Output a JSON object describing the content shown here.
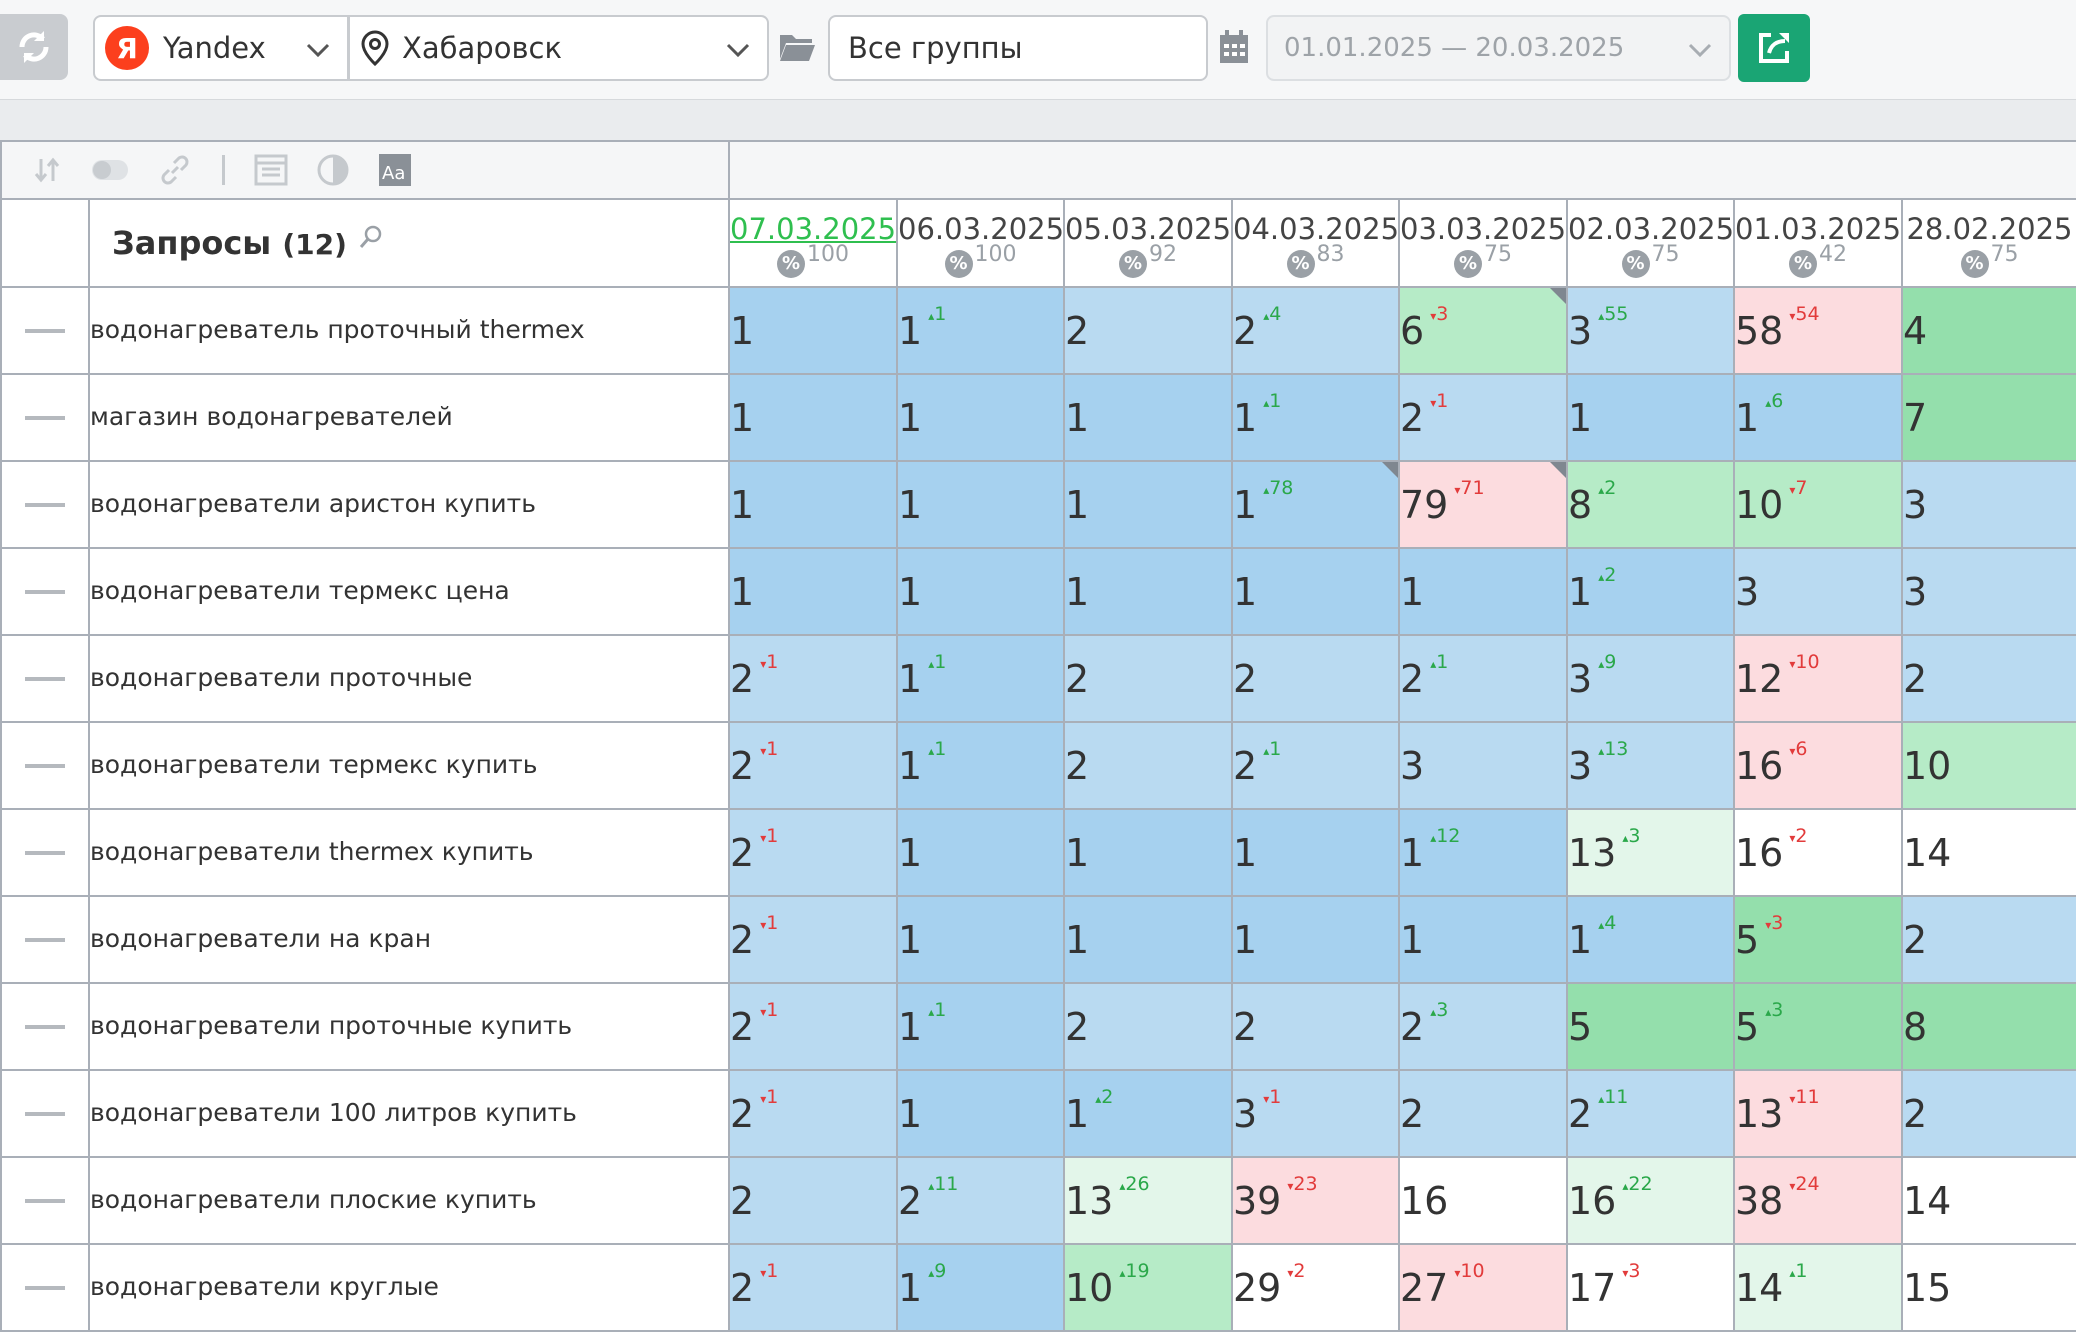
{
  "toolbar": {
    "refresh_icon": "refresh-icon",
    "engine_logo": "Я",
    "engine": "Yandex",
    "city": "Хабаровск",
    "group": "Все группы",
    "date_range": "01.01.2025 — 20.03.2025",
    "accent_color": "#1aa574"
  },
  "table": {
    "queries_title": "Запросы",
    "queries_count": "(12)",
    "dates": [
      {
        "date": "07.03.2025",
        "pct": "100",
        "current": true
      },
      {
        "date": "06.03.2025",
        "pct": "100"
      },
      {
        "date": "05.03.2025",
        "pct": "92"
      },
      {
        "date": "04.03.2025",
        "pct": "83"
      },
      {
        "date": "03.03.2025",
        "pct": "75"
      },
      {
        "date": "02.03.2025",
        "pct": "75"
      },
      {
        "date": "01.03.2025",
        "pct": "42"
      },
      {
        "date": "28.02.2025",
        "pct": "75"
      }
    ],
    "rows": [
      {
        "query": "водонагреватель проточный thermex",
        "cells": [
          {
            "v": "1",
            "bg": "b1"
          },
          {
            "v": "1",
            "d": "1",
            "dir": "up",
            "bg": "b1"
          },
          {
            "v": "2",
            "bg": "b2"
          },
          {
            "v": "2",
            "d": "4",
            "dir": "up",
            "bg": "b2"
          },
          {
            "v": "6",
            "d": "3",
            "dir": "dn",
            "bg": "g2",
            "corner": true
          },
          {
            "v": "3",
            "d": "55",
            "dir": "up",
            "bg": "b2"
          },
          {
            "v": "58",
            "d": "54",
            "dir": "dn",
            "bg": "r1"
          },
          {
            "v": "4",
            "bg": "g1"
          }
        ]
      },
      {
        "query": "магазин водонагревателей",
        "cells": [
          {
            "v": "1",
            "bg": "b1"
          },
          {
            "v": "1",
            "bg": "b1"
          },
          {
            "v": "1",
            "bg": "b1"
          },
          {
            "v": "1",
            "d": "1",
            "dir": "up",
            "bg": "b1"
          },
          {
            "v": "2",
            "d": "1",
            "dir": "dn",
            "bg": "b2"
          },
          {
            "v": "1",
            "bg": "b1"
          },
          {
            "v": "1",
            "d": "6",
            "dir": "up",
            "bg": "b1"
          },
          {
            "v": "7",
            "bg": "g1"
          }
        ]
      },
      {
        "query": "водонагреватели аристон купить",
        "cells": [
          {
            "v": "1",
            "bg": "b1"
          },
          {
            "v": "1",
            "bg": "b1"
          },
          {
            "v": "1",
            "bg": "b1"
          },
          {
            "v": "1",
            "d": "78",
            "dir": "up",
            "bg": "b1",
            "corner": true
          },
          {
            "v": "79",
            "d": "71",
            "dir": "dn",
            "bg": "r1",
            "corner": true
          },
          {
            "v": "8",
            "d": "2",
            "dir": "up",
            "bg": "g2"
          },
          {
            "v": "10",
            "d": "7",
            "dir": "dn",
            "bg": "g2"
          },
          {
            "v": "3",
            "bg": "b2"
          }
        ]
      },
      {
        "query": "водонагреватели термекс цена",
        "cells": [
          {
            "v": "1",
            "bg": "b1"
          },
          {
            "v": "1",
            "bg": "b1"
          },
          {
            "v": "1",
            "bg": "b1"
          },
          {
            "v": "1",
            "bg": "b1"
          },
          {
            "v": "1",
            "bg": "b1"
          },
          {
            "v": "1",
            "d": "2",
            "dir": "up",
            "bg": "b1"
          },
          {
            "v": "3",
            "bg": "b2"
          },
          {
            "v": "3",
            "bg": "b2"
          }
        ]
      },
      {
        "query": "водонагреватели проточные",
        "cells": [
          {
            "v": "2",
            "d": "1",
            "dir": "dn",
            "bg": "b2"
          },
          {
            "v": "1",
            "d": "1",
            "dir": "up",
            "bg": "b1"
          },
          {
            "v": "2",
            "bg": "b2"
          },
          {
            "v": "2",
            "bg": "b2"
          },
          {
            "v": "2",
            "d": "1",
            "dir": "up",
            "bg": "b2"
          },
          {
            "v": "3",
            "d": "9",
            "dir": "up",
            "bg": "b2"
          },
          {
            "v": "12",
            "d": "10",
            "dir": "dn",
            "bg": "r1"
          },
          {
            "v": "2",
            "bg": "b2"
          }
        ]
      },
      {
        "query": "водонагреватели термекс купить",
        "cells": [
          {
            "v": "2",
            "d": "1",
            "dir": "dn",
            "bg": "b2"
          },
          {
            "v": "1",
            "d": "1",
            "dir": "up",
            "bg": "b1"
          },
          {
            "v": "2",
            "bg": "b2"
          },
          {
            "v": "2",
            "d": "1",
            "dir": "up",
            "bg": "b2"
          },
          {
            "v": "3",
            "bg": "b2"
          },
          {
            "v": "3",
            "d": "13",
            "dir": "up",
            "bg": "b2"
          },
          {
            "v": "16",
            "d": "6",
            "dir": "dn",
            "bg": "r1"
          },
          {
            "v": "10",
            "bg": "g2"
          }
        ]
      },
      {
        "query": "водонагреватели thermex купить",
        "cells": [
          {
            "v": "2",
            "d": "1",
            "dir": "dn",
            "bg": "b2"
          },
          {
            "v": "1",
            "bg": "b1"
          },
          {
            "v": "1",
            "bg": "b1"
          },
          {
            "v": "1",
            "bg": "b1"
          },
          {
            "v": "1",
            "d": "12",
            "dir": "up",
            "bg": "b1"
          },
          {
            "v": "13",
            "d": "3",
            "dir": "up",
            "bg": "g3"
          },
          {
            "v": "16",
            "d": "2",
            "dir": "dn",
            "bg": "w"
          },
          {
            "v": "14",
            "bg": "w"
          }
        ]
      },
      {
        "query": "водонагреватели на кран",
        "cells": [
          {
            "v": "2",
            "d": "1",
            "dir": "dn",
            "bg": "b2"
          },
          {
            "v": "1",
            "bg": "b1"
          },
          {
            "v": "1",
            "bg": "b1"
          },
          {
            "v": "1",
            "bg": "b1"
          },
          {
            "v": "1",
            "bg": "b1"
          },
          {
            "v": "1",
            "d": "4",
            "dir": "up",
            "bg": "b1"
          },
          {
            "v": "5",
            "d": "3",
            "dir": "dn",
            "bg": "g1"
          },
          {
            "v": "2",
            "bg": "b2"
          }
        ]
      },
      {
        "query": "водонагреватели проточные купить",
        "cells": [
          {
            "v": "2",
            "d": "1",
            "dir": "dn",
            "bg": "b2"
          },
          {
            "v": "1",
            "d": "1",
            "dir": "up",
            "bg": "b1"
          },
          {
            "v": "2",
            "bg": "b2"
          },
          {
            "v": "2",
            "bg": "b2"
          },
          {
            "v": "2",
            "d": "3",
            "dir": "up",
            "bg": "b2"
          },
          {
            "v": "5",
            "bg": "g1"
          },
          {
            "v": "5",
            "d": "3",
            "dir": "up",
            "bg": "g1"
          },
          {
            "v": "8",
            "bg": "g1"
          }
        ]
      },
      {
        "query": "водонагреватели 100 литров купить",
        "cells": [
          {
            "v": "2",
            "d": "1",
            "dir": "dn",
            "bg": "b2"
          },
          {
            "v": "1",
            "bg": "b1"
          },
          {
            "v": "1",
            "d": "2",
            "dir": "up",
            "bg": "b1"
          },
          {
            "v": "3",
            "d": "1",
            "dir": "dn",
            "bg": "b2"
          },
          {
            "v": "2",
            "bg": "b2"
          },
          {
            "v": "2",
            "d": "11",
            "dir": "up",
            "bg": "b2"
          },
          {
            "v": "13",
            "d": "11",
            "dir": "dn",
            "bg": "r1"
          },
          {
            "v": "2",
            "bg": "b2"
          }
        ]
      },
      {
        "query": "водонагреватели плоские купить",
        "cells": [
          {
            "v": "2",
            "bg": "b2"
          },
          {
            "v": "2",
            "d": "11",
            "dir": "up",
            "bg": "b2"
          },
          {
            "v": "13",
            "d": "26",
            "dir": "up",
            "bg": "g3"
          },
          {
            "v": "39",
            "d": "23",
            "dir": "dn",
            "bg": "r1"
          },
          {
            "v": "16",
            "bg": "w"
          },
          {
            "v": "16",
            "d": "22",
            "dir": "up",
            "bg": "g3"
          },
          {
            "v": "38",
            "d": "24",
            "dir": "dn",
            "bg": "r1"
          },
          {
            "v": "14",
            "bg": "w"
          }
        ]
      },
      {
        "query": "водонагреватели круглые",
        "cells": [
          {
            "v": "2",
            "d": "1",
            "dir": "dn",
            "bg": "b2"
          },
          {
            "v": "1",
            "d": "9",
            "dir": "up",
            "bg": "b1"
          },
          {
            "v": "10",
            "d": "19",
            "dir": "up",
            "bg": "g2"
          },
          {
            "v": "29",
            "d": "2",
            "dir": "dn",
            "bg": "w"
          },
          {
            "v": "27",
            "d": "10",
            "dir": "dn",
            "bg": "r1"
          },
          {
            "v": "17",
            "d": "3",
            "dir": "dn",
            "bg": "w"
          },
          {
            "v": "14",
            "d": "1",
            "dir": "up",
            "bg": "g3"
          },
          {
            "v": "15",
            "bg": "w"
          }
        ]
      }
    ]
  }
}
